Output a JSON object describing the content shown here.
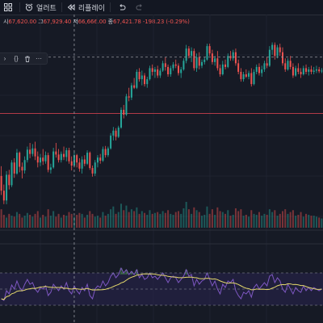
{
  "toolbar": {
    "alert_label": "얼러트",
    "replay_label": "리플레이"
  },
  "ohlc": {
    "open_key": "시",
    "open": "67,620.00",
    "high_key": "고",
    "high": "67,929.40",
    "low_key": "저",
    "low": "66,666.00",
    "close_key": "종",
    "close": "67,421.78",
    "change": "-198.23 (-0.29%)"
  },
  "colors": {
    "background": "#161a25",
    "up": "#26a69a",
    "down": "#ef5350",
    "rsi_line": "#7e57c2",
    "rsi_ma": "#e3d76b",
    "rsi_band": "#2a2450",
    "crosshair": "#9598a1",
    "price_line": "#b23a48"
  },
  "chart_data": [
    {
      "type": "candlestick",
      "description_series": "price",
      "points": [
        [
          67160,
          67320,
          66850,
          66920
        ],
        [
          66920,
          67020,
          66700,
          66760
        ],
        [
          66760,
          67240,
          66700,
          67180
        ],
        [
          67180,
          67260,
          66940,
          67010
        ],
        [
          67010,
          67420,
          66980,
          67380
        ],
        [
          67380,
          67450,
          67130,
          67200
        ],
        [
          67200,
          67600,
          67180,
          67540
        ],
        [
          67540,
          67560,
          67220,
          67310
        ],
        [
          67310,
          67380,
          67120,
          67250
        ],
        [
          67250,
          67480,
          67200,
          67420
        ],
        [
          67420,
          67640,
          67380,
          67590
        ],
        [
          67590,
          67700,
          67450,
          67520
        ],
        [
          67520,
          67680,
          67480,
          67610
        ],
        [
          67610,
          67720,
          67420,
          67480
        ],
        [
          67480,
          67560,
          67300,
          67380
        ],
        [
          67380,
          67520,
          67320,
          67460
        ],
        [
          67460,
          67600,
          67340,
          67400
        ],
        [
          67400,
          67560,
          67360,
          67500
        ],
        [
          67500,
          67540,
          67220,
          67260
        ],
        [
          67260,
          67360,
          67200,
          67300
        ],
        [
          67300,
          67620,
          67280,
          67560
        ],
        [
          67560,
          67700,
          67460,
          67510
        ],
        [
          67510,
          67600,
          67380,
          67420
        ],
        [
          67420,
          67560,
          67380,
          67520
        ],
        [
          67520,
          67640,
          67420,
          67470
        ],
        [
          67470,
          67620,
          67400,
          67580
        ],
        [
          67580,
          67620,
          67360,
          67400
        ],
        [
          67400,
          67480,
          67250,
          67330
        ],
        [
          67330,
          67560,
          67300,
          67500
        ],
        [
          67500,
          67520,
          67300,
          67380
        ],
        [
          67380,
          67450,
          67230,
          67280
        ],
        [
          67280,
          67480,
          67200,
          67430
        ],
        [
          67430,
          67500,
          67320,
          67360
        ],
        [
          67360,
          67580,
          67340,
          67540
        ],
        [
          67540,
          67560,
          67260,
          67290
        ],
        [
          67290,
          67330,
          67150,
          67200
        ],
        [
          67200,
          67420,
          67160,
          67380
        ],
        [
          67380,
          67500,
          67300,
          67460
        ],
        [
          67460,
          67520,
          67360,
          67410
        ],
        [
          67410,
          67640,
          67390,
          67600
        ],
        [
          67600,
          67650,
          67460,
          67500
        ],
        [
          67500,
          67640,
          67470,
          67610
        ],
        [
          67610,
          67860,
          67590,
          67820
        ],
        [
          67820,
          67960,
          67740,
          67900
        ],
        [
          67900,
          67940,
          67740,
          67800
        ],
        [
          67800,
          67980,
          67780,
          67950
        ],
        [
          67950,
          68280,
          67930,
          68240
        ],
        [
          68240,
          68320,
          68100,
          68160
        ],
        [
          68160,
          68500,
          68140,
          68460
        ],
        [
          68460,
          68600,
          68380,
          68440
        ],
        [
          68440,
          68680,
          68400,
          68640
        ],
        [
          68640,
          68760,
          68580,
          68600
        ],
        [
          68600,
          68900,
          68580,
          68860
        ],
        [
          68860,
          68920,
          68700,
          68740
        ],
        [
          68740,
          68880,
          68640,
          68800
        ],
        [
          68800,
          68840,
          68620,
          68660
        ],
        [
          68660,
          68780,
          68600,
          68740
        ],
        [
          68740,
          68960,
          68720,
          68920
        ],
        [
          68920,
          68980,
          68800,
          68860
        ],
        [
          68860,
          68940,
          68760,
          68900
        ],
        [
          68900,
          68960,
          68760,
          68800
        ],
        [
          68800,
          68920,
          68760,
          68880
        ],
        [
          68880,
          69040,
          68860,
          69000
        ],
        [
          69000,
          69100,
          68880,
          68940
        ],
        [
          68940,
          68980,
          68780,
          68820
        ],
        [
          68820,
          68960,
          68780,
          68920
        ],
        [
          68920,
          69020,
          68880,
          68980
        ],
        [
          68980,
          69060,
          68920,
          68960
        ],
        [
          68960,
          69000,
          68800,
          68840
        ],
        [
          68840,
          68940,
          68760,
          68900
        ],
        [
          68900,
          69080,
          68880,
          69040
        ],
        [
          69040,
          69300,
          69000,
          69240
        ],
        [
          69240,
          69280,
          69080,
          69120
        ],
        [
          69120,
          69260,
          69020,
          69200
        ],
        [
          69200,
          69240,
          68880,
          68920
        ],
        [
          68920,
          69160,
          68860,
          69100
        ],
        [
          69100,
          69180,
          68900,
          68960
        ],
        [
          68960,
          69060,
          68920,
          69020
        ],
        [
          69020,
          69100,
          68980,
          69060
        ],
        [
          69060,
          69320,
          69040,
          69280
        ],
        [
          69280,
          69320,
          69120,
          69160
        ],
        [
          69160,
          69220,
          68980,
          69020
        ],
        [
          69020,
          69120,
          68960,
          69080
        ],
        [
          69080,
          69200,
          68880,
          68920
        ],
        [
          68920,
          68980,
          68780,
          68820
        ],
        [
          68820,
          69040,
          68800,
          68980
        ],
        [
          68980,
          69060,
          68900,
          68940
        ],
        [
          68940,
          69160,
          68920,
          69120
        ],
        [
          69120,
          69200,
          69040,
          69080
        ],
        [
          69080,
          69220,
          69040,
          69180
        ],
        [
          69180,
          69240,
          68960,
          69000
        ],
        [
          69000,
          69060,
          68820,
          68860
        ],
        [
          68860,
          68920,
          68700,
          68740
        ],
        [
          68740,
          68860,
          68700,
          68820
        ],
        [
          68820,
          68900,
          68760,
          68780
        ],
        [
          68780,
          68880,
          68740,
          68840
        ],
        [
          68840,
          68920,
          68620,
          68660
        ],
        [
          68660,
          68900,
          68640,
          68860
        ],
        [
          68860,
          68980,
          68820,
          68940
        ],
        [
          68940,
          69000,
          68800,
          68840
        ],
        [
          68840,
          68960,
          68780,
          68900
        ],
        [
          68900,
          69040,
          68860,
          69000
        ],
        [
          69000,
          69100,
          68920,
          68960
        ],
        [
          68960,
          69280,
          68940,
          69220
        ],
        [
          69220,
          69340,
          69140,
          69300
        ],
        [
          69300,
          69340,
          69060,
          69120
        ],
        [
          69120,
          69300,
          69080,
          69260
        ],
        [
          69260,
          69320,
          69120,
          69180
        ],
        [
          69180,
          69260,
          68960,
          69000
        ],
        [
          69000,
          69080,
          68860,
          68900
        ],
        [
          68900,
          69080,
          68880,
          69040
        ],
        [
          69040,
          69120,
          68900,
          68940
        ],
        [
          68940,
          69000,
          68760,
          68800
        ],
        [
          68800,
          68960,
          68780,
          68920
        ],
        [
          68920,
          69000,
          68820,
          68860
        ],
        [
          68860,
          68920,
          68760,
          68820
        ],
        [
          68820,
          68960,
          68800,
          68920
        ],
        [
          68920,
          68980,
          68820,
          68860
        ],
        [
          68860,
          68940,
          68800,
          68900
        ],
        [
          68900,
          68960,
          68820,
          68860
        ],
        [
          68860,
          68940,
          68820,
          68880
        ],
        [
          68880,
          68960,
          68840,
          68900
        ],
        [
          68900,
          68940,
          68840,
          68870
        ],
        [
          68870,
          68920,
          68840,
          68880
        ]
      ],
      "volume": [
        40,
        28,
        22,
        30,
        26,
        24,
        34,
        30,
        22,
        26,
        32,
        28,
        24,
        30,
        36,
        22,
        28,
        24,
        40,
        26,
        36,
        24,
        30,
        22,
        28,
        26,
        34,
        30,
        24,
        28,
        32,
        30,
        22,
        28,
        36,
        30,
        24,
        26,
        22,
        34,
        26,
        30,
        40,
        46,
        30,
        34,
        52,
        38,
        48,
        34,
        40,
        36,
        44,
        30,
        36,
        32,
        28,
        38,
        30,
        32,
        34,
        30,
        36,
        32,
        38,
        30,
        28,
        34,
        36,
        30,
        42,
        56,
        40,
        30,
        44,
        38,
        34,
        26,
        28,
        46,
        30,
        40,
        28,
        44,
        36,
        34,
        30,
        38,
        26,
        28,
        42,
        36,
        40,
        26,
        28,
        24,
        38,
        30,
        28,
        34,
        26,
        30,
        28,
        40,
        34,
        38,
        26,
        30,
        36,
        40,
        30,
        34,
        38,
        26,
        28,
        34,
        24,
        30,
        28,
        26,
        26,
        24,
        22,
        20
      ],
      "rsi": [
        38,
        36,
        48,
        44,
        55,
        50,
        60,
        52,
        48,
        56,
        62,
        56,
        58,
        50,
        46,
        52,
        50,
        54,
        42,
        46,
        56,
        52,
        48,
        54,
        50,
        58,
        48,
        44,
        54,
        48,
        44,
        52,
        48,
        56,
        42,
        38,
        50,
        54,
        52,
        60,
        54,
        58,
        66,
        70,
        64,
        68,
        76,
        70,
        74,
        68,
        72,
        68,
        74,
        64,
        68,
        62,
        64,
        70,
        64,
        66,
        62,
        66,
        70,
        64,
        58,
        64,
        66,
        64,
        58,
        62,
        66,
        74,
        66,
        68,
        54,
        62,
        56,
        60,
        62,
        70,
        62,
        54,
        60,
        50,
        44,
        56,
        52,
        60,
        58,
        62,
        48,
        42,
        38,
        46,
        44,
        48,
        40,
        52,
        56,
        50,
        54,
        58,
        54,
        66,
        68,
        58,
        64,
        60,
        50,
        46,
        56,
        50,
        44,
        52,
        48,
        46,
        54,
        48,
        52,
        48,
        52,
        50,
        48,
        50
      ],
      "rsi_ma_length": 14,
      "price_line_value": 68180,
      "crosshair_index": 28,
      "crosshair_price": 69100
    }
  ]
}
